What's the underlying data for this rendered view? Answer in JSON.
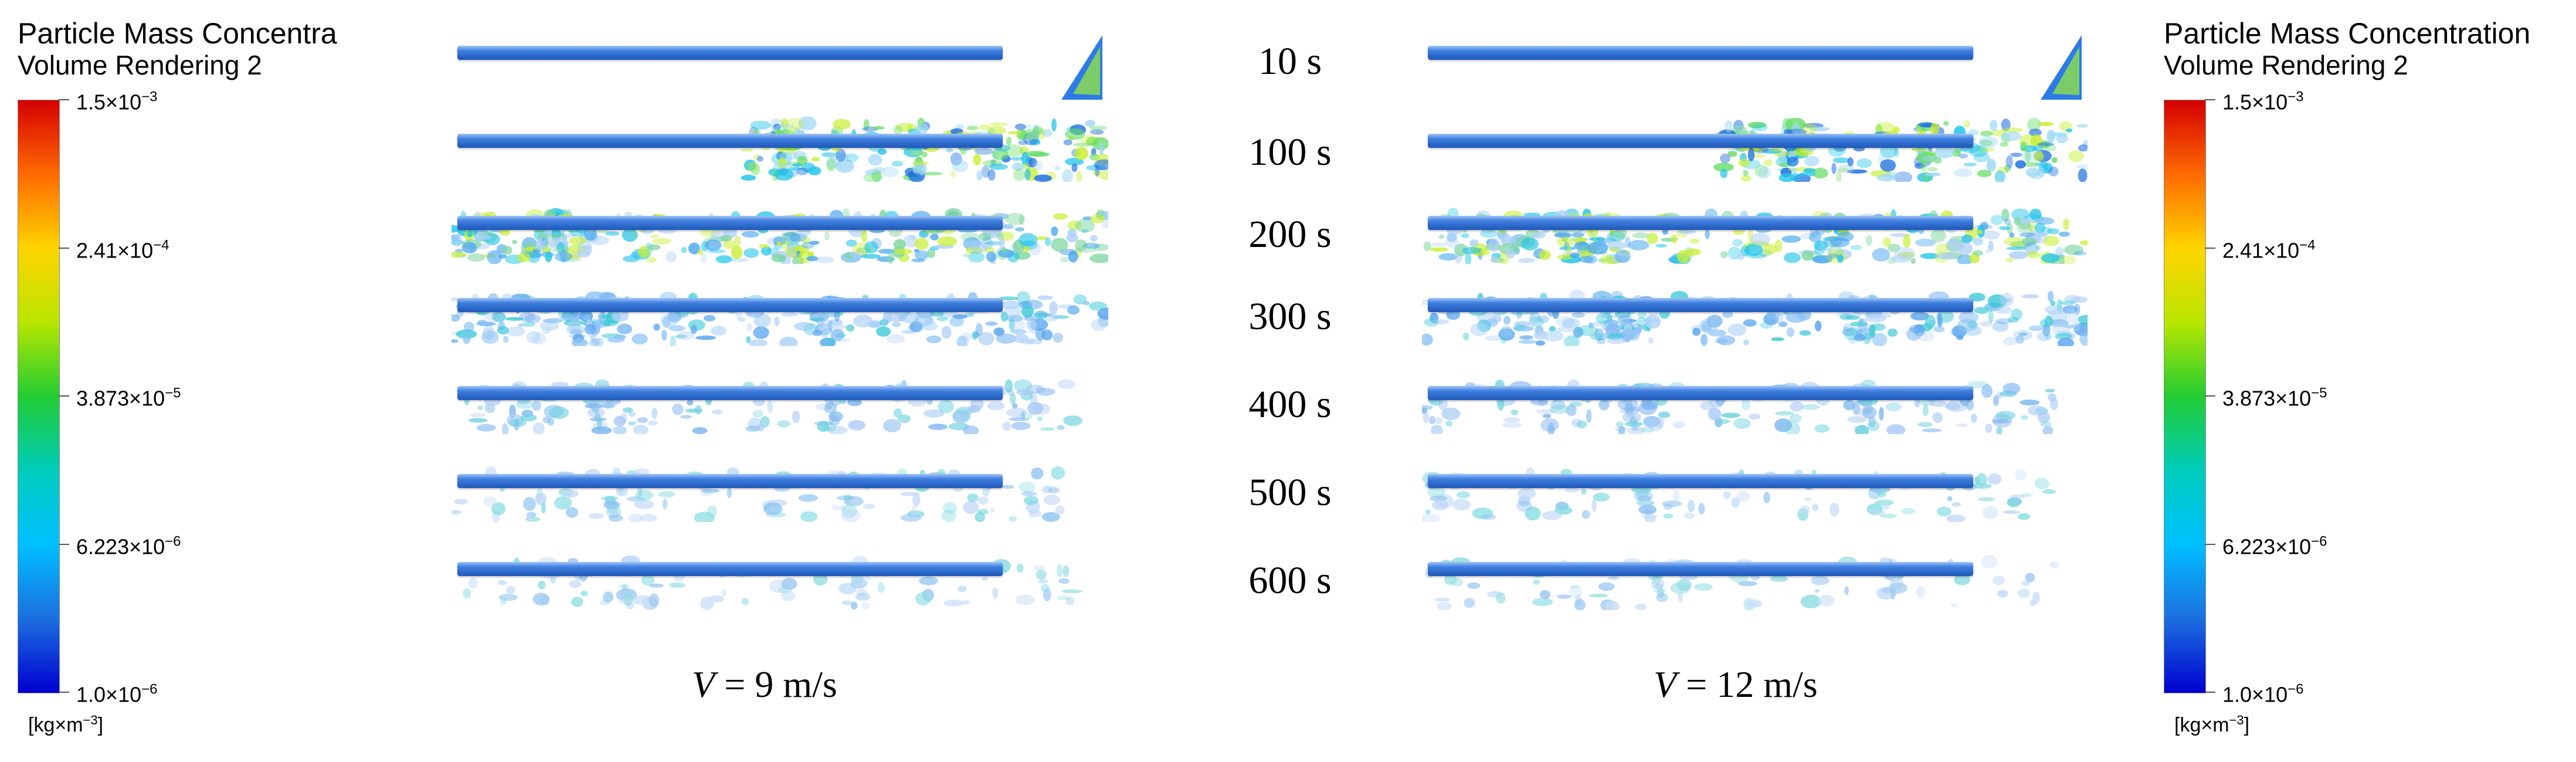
{
  "legend_left": {
    "title": "Particle Mass Concentra",
    "subtitle": "Volume Rendering 2",
    "units": {
      "base": "[kg×m",
      "exp": "−3",
      "close": "]"
    },
    "ticks": [
      {
        "base": "1.5×10",
        "exp": "−3"
      },
      {
        "base": "2.41×10",
        "exp": "−4"
      },
      {
        "base": "3.873×10",
        "exp": "−5"
      },
      {
        "base": "6.223×10",
        "exp": "−6"
      },
      {
        "base": "1.0×10",
        "exp": "−6"
      }
    ]
  },
  "legend_right": {
    "title": "Particle Mass Concentration",
    "subtitle": "Volume Rendering 2",
    "units": {
      "base": "[kg×m",
      "exp": "−3",
      "close": "]"
    },
    "ticks": [
      {
        "base": "1.5×10",
        "exp": "−3"
      },
      {
        "base": "2.41×10",
        "exp": "−4"
      },
      {
        "base": "3.873×10",
        "exp": "−5"
      },
      {
        "base": "6.223×10",
        "exp": "−6"
      },
      {
        "base": "1.0×10",
        "exp": "−6"
      }
    ]
  },
  "colorbar_colors": [
    "#d40000",
    "#ff6a00",
    "#ffd400",
    "#b8e600",
    "#22cc33",
    "#00ccbb",
    "#00bfff",
    "#1c6fe0",
    "#0000d0"
  ],
  "times": [
    "10 s",
    "100 s",
    "200 s",
    "300 s",
    "400 s",
    "500 s",
    "600 s"
  ],
  "panels": [
    {
      "caption_symbol": "V",
      "caption_value": " = 9 m/s"
    },
    {
      "caption_symbol": "V",
      "caption_value": " = 12 m/s"
    }
  ]
}
